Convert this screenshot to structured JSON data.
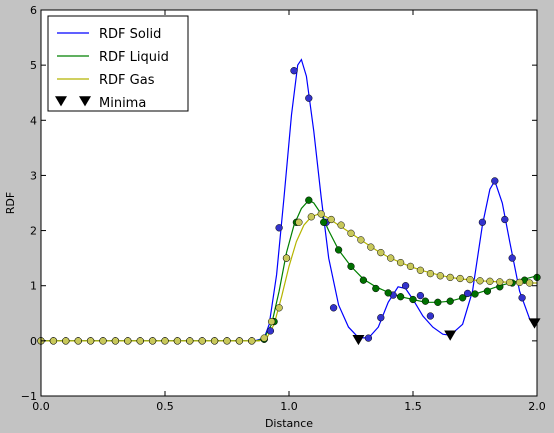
{
  "chart_data": {
    "type": "line",
    "title": "",
    "xlabel": "Distance",
    "ylabel": "RDF",
    "xlim": [
      0.0,
      2.0
    ],
    "ylim": [
      -1,
      6
    ],
    "x_ticks": [
      "0.0",
      "0.5",
      "1.0",
      "1.5",
      "2.0"
    ],
    "y_ticks": [
      "−1",
      "0",
      "1",
      "2",
      "3",
      "4",
      "5",
      "6"
    ],
    "grid": false,
    "legend_position": "top-left",
    "series": [
      {
        "name": "RDF Solid",
        "color": "#0000ff",
        "marker_color": "#3333cc",
        "curve": [
          [
            0.0,
            0
          ],
          [
            0.86,
            0
          ],
          [
            0.9,
            0.05
          ],
          [
            0.92,
            0.3
          ],
          [
            0.95,
            1.2
          ],
          [
            0.98,
            2.6
          ],
          [
            1.01,
            4.1
          ],
          [
            1.035,
            5.0
          ],
          [
            1.05,
            5.1
          ],
          [
            1.07,
            4.8
          ],
          [
            1.1,
            3.8
          ],
          [
            1.13,
            2.6
          ],
          [
            1.16,
            1.5
          ],
          [
            1.2,
            0.65
          ],
          [
            1.24,
            0.25
          ],
          [
            1.28,
            0.06
          ],
          [
            1.32,
            0.05
          ],
          [
            1.36,
            0.25
          ],
          [
            1.4,
            0.7
          ],
          [
            1.44,
            0.98
          ],
          [
            1.47,
            0.95
          ],
          [
            1.5,
            0.75
          ],
          [
            1.54,
            0.45
          ],
          [
            1.58,
            0.25
          ],
          [
            1.62,
            0.12
          ],
          [
            1.65,
            0.1
          ],
          [
            1.7,
            0.3
          ],
          [
            1.74,
            0.9
          ],
          [
            1.78,
            2.1
          ],
          [
            1.81,
            2.75
          ],
          [
            1.83,
            2.9
          ],
          [
            1.86,
            2.5
          ],
          [
            1.89,
            1.8
          ],
          [
            1.93,
            0.9
          ],
          [
            1.97,
            0.4
          ],
          [
            2.0,
            0.3
          ]
        ],
        "points": [
          [
            0.0,
            0
          ],
          [
            0.05,
            0
          ],
          [
            0.1,
            0
          ],
          [
            0.15,
            0
          ],
          [
            0.2,
            0
          ],
          [
            0.25,
            0
          ],
          [
            0.3,
            0
          ],
          [
            0.35,
            0
          ],
          [
            0.4,
            0
          ],
          [
            0.45,
            0
          ],
          [
            0.5,
            0
          ],
          [
            0.55,
            0
          ],
          [
            0.6,
            0
          ],
          [
            0.65,
            0
          ],
          [
            0.7,
            0
          ],
          [
            0.75,
            0
          ],
          [
            0.8,
            0
          ],
          [
            0.85,
            0
          ],
          [
            0.9,
            0.03
          ],
          [
            0.925,
            0.18
          ],
          [
            0.96,
            2.05
          ],
          [
            1.02,
            4.9
          ],
          [
            1.08,
            4.4
          ],
          [
            1.15,
            2.15
          ],
          [
            1.18,
            0.6
          ],
          [
            1.32,
            0.05
          ],
          [
            1.37,
            0.42
          ],
          [
            1.42,
            0.83
          ],
          [
            1.47,
            1.0
          ],
          [
            1.53,
            0.82
          ],
          [
            1.57,
            0.45
          ],
          [
            1.72,
            0.86
          ],
          [
            1.78,
            2.15
          ],
          [
            1.83,
            2.9
          ],
          [
            1.87,
            2.2
          ],
          [
            1.9,
            1.5
          ],
          [
            1.94,
            0.78
          ]
        ]
      },
      {
        "name": "RDF Liquid",
        "color": "#008000",
        "marker_color": "#007000",
        "curve": [
          [
            0.0,
            0
          ],
          [
            0.87,
            0
          ],
          [
            0.9,
            0.05
          ],
          [
            0.93,
            0.3
          ],
          [
            0.96,
            0.9
          ],
          [
            0.99,
            1.6
          ],
          [
            1.02,
            2.1
          ],
          [
            1.05,
            2.4
          ],
          [
            1.08,
            2.55
          ],
          [
            1.1,
            2.5
          ],
          [
            1.13,
            2.3
          ],
          [
            1.16,
            2.0
          ],
          [
            1.2,
            1.65
          ],
          [
            1.25,
            1.35
          ],
          [
            1.3,
            1.12
          ],
          [
            1.35,
            0.98
          ],
          [
            1.4,
            0.88
          ],
          [
            1.45,
            0.8
          ],
          [
            1.5,
            0.75
          ],
          [
            1.55,
            0.7
          ],
          [
            1.6,
            0.7
          ],
          [
            1.65,
            0.72
          ],
          [
            1.7,
            0.78
          ],
          [
            1.75,
            0.85
          ],
          [
            1.8,
            0.92
          ],
          [
            1.85,
            1.0
          ],
          [
            1.9,
            1.06
          ],
          [
            1.95,
            1.12
          ],
          [
            2.0,
            1.18
          ]
        ],
        "points": [
          [
            0.0,
            0
          ],
          [
            0.05,
            0
          ],
          [
            0.1,
            0
          ],
          [
            0.15,
            0
          ],
          [
            0.2,
            0
          ],
          [
            0.25,
            0
          ],
          [
            0.3,
            0
          ],
          [
            0.35,
            0
          ],
          [
            0.4,
            0
          ],
          [
            0.45,
            0
          ],
          [
            0.5,
            0
          ],
          [
            0.55,
            0
          ],
          [
            0.6,
            0
          ],
          [
            0.65,
            0
          ],
          [
            0.7,
            0
          ],
          [
            0.75,
            0
          ],
          [
            0.8,
            0
          ],
          [
            0.85,
            0
          ],
          [
            0.9,
            0.03
          ],
          [
            0.94,
            0.35
          ],
          [
            0.99,
            1.5
          ],
          [
            1.03,
            2.15
          ],
          [
            1.08,
            2.55
          ],
          [
            1.14,
            2.15
          ],
          [
            1.2,
            1.65
          ],
          [
            1.25,
            1.35
          ],
          [
            1.3,
            1.1
          ],
          [
            1.35,
            0.95
          ],
          [
            1.4,
            0.87
          ],
          [
            1.45,
            0.8
          ],
          [
            1.5,
            0.75
          ],
          [
            1.55,
            0.72
          ],
          [
            1.6,
            0.7
          ],
          [
            1.65,
            0.72
          ],
          [
            1.7,
            0.78
          ],
          [
            1.75,
            0.85
          ],
          [
            1.8,
            0.9
          ],
          [
            1.85,
            0.98
          ],
          [
            1.9,
            1.05
          ],
          [
            1.95,
            1.1
          ],
          [
            2.0,
            1.15
          ]
        ]
      },
      {
        "name": "RDF Gas",
        "color": "#b5b500",
        "marker_color": "#c8c85a",
        "curve": [
          [
            0.0,
            0
          ],
          [
            0.88,
            0
          ],
          [
            0.91,
            0.05
          ],
          [
            0.94,
            0.3
          ],
          [
            0.97,
            0.8
          ],
          [
            1.0,
            1.35
          ],
          [
            1.03,
            1.8
          ],
          [
            1.06,
            2.1
          ],
          [
            1.09,
            2.25
          ],
          [
            1.12,
            2.3
          ],
          [
            1.15,
            2.25
          ],
          [
            1.2,
            2.1
          ],
          [
            1.25,
            1.95
          ],
          [
            1.3,
            1.8
          ],
          [
            1.35,
            1.65
          ],
          [
            1.4,
            1.52
          ],
          [
            1.45,
            1.42
          ],
          [
            1.5,
            1.33
          ],
          [
            1.55,
            1.26
          ],
          [
            1.6,
            1.2
          ],
          [
            1.65,
            1.15
          ],
          [
            1.7,
            1.12
          ],
          [
            1.75,
            1.1
          ],
          [
            1.8,
            1.08
          ],
          [
            1.85,
            1.07
          ],
          [
            1.9,
            1.06
          ],
          [
            1.95,
            1.05
          ],
          [
            2.0,
            1.05
          ]
        ],
        "points": [
          [
            0.0,
            0
          ],
          [
            0.05,
            0
          ],
          [
            0.1,
            0
          ],
          [
            0.15,
            0
          ],
          [
            0.2,
            0
          ],
          [
            0.25,
            0
          ],
          [
            0.3,
            0
          ],
          [
            0.35,
            0
          ],
          [
            0.4,
            0
          ],
          [
            0.45,
            0
          ],
          [
            0.5,
            0
          ],
          [
            0.55,
            0
          ],
          [
            0.6,
            0
          ],
          [
            0.65,
            0
          ],
          [
            0.7,
            0
          ],
          [
            0.75,
            0
          ],
          [
            0.8,
            0
          ],
          [
            0.85,
            0
          ],
          [
            0.9,
            0.05
          ],
          [
            0.93,
            0.35
          ],
          [
            0.96,
            0.6
          ],
          [
            0.99,
            1.5
          ],
          [
            1.04,
            2.15
          ],
          [
            1.09,
            2.25
          ],
          [
            1.13,
            2.3
          ],
          [
            1.17,
            2.2
          ],
          [
            1.21,
            2.1
          ],
          [
            1.25,
            1.95
          ],
          [
            1.29,
            1.83
          ],
          [
            1.33,
            1.7
          ],
          [
            1.37,
            1.6
          ],
          [
            1.41,
            1.5
          ],
          [
            1.45,
            1.42
          ],
          [
            1.49,
            1.35
          ],
          [
            1.53,
            1.28
          ],
          [
            1.57,
            1.22
          ],
          [
            1.61,
            1.18
          ],
          [
            1.65,
            1.15
          ],
          [
            1.69,
            1.13
          ],
          [
            1.73,
            1.11
          ],
          [
            1.77,
            1.09
          ],
          [
            1.81,
            1.08
          ],
          [
            1.85,
            1.07
          ],
          [
            1.89,
            1.06
          ],
          [
            1.93,
            1.06
          ],
          [
            1.97,
            1.05
          ]
        ]
      }
    ],
    "minima": {
      "name": "Minima",
      "color": "#000000",
      "points": [
        [
          1.28,
          0.02
        ],
        [
          1.65,
          0.1
        ],
        [
          1.99,
          0.32
        ]
      ]
    }
  }
}
